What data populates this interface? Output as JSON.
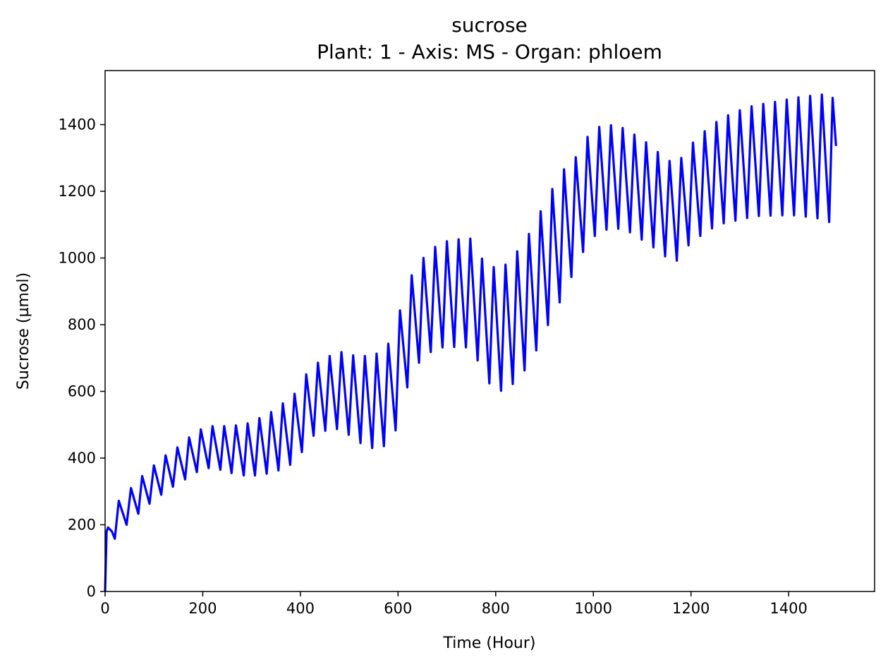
{
  "chart_data": {
    "type": "line",
    "title": "sucrose",
    "subtitle": "Plant: 1 - Axis: MS - Organ: phloem",
    "xlabel": "Time (Hour)",
    "ylabel": "Sucrose (µmol)",
    "xlim": [
      0,
      1576
    ],
    "ylim": [
      0,
      1562
    ],
    "x_ticks": [
      0,
      200,
      400,
      600,
      800,
      1000,
      1200,
      1400
    ],
    "y_ticks": [
      0,
      200,
      400,
      600,
      800,
      1000,
      1200,
      1400
    ],
    "grid": false,
    "line_color": "#0000ff",
    "series": [
      {
        "points": [
          [
            0,
            0
          ],
          [
            3,
            180
          ],
          [
            6,
            192
          ],
          [
            14,
            180
          ],
          [
            20,
            158
          ],
          [
            28,
            272
          ],
          [
            44,
            200
          ],
          [
            53,
            310
          ],
          [
            68,
            233
          ],
          [
            76,
            346
          ],
          [
            91,
            263
          ],
          [
            100,
            378
          ],
          [
            115,
            290
          ],
          [
            124,
            408
          ],
          [
            139,
            314
          ],
          [
            148,
            432
          ],
          [
            164,
            336
          ],
          [
            172,
            462
          ],
          [
            188,
            358
          ],
          [
            196,
            486
          ],
          [
            212,
            370
          ],
          [
            220,
            496
          ],
          [
            236,
            365
          ],
          [
            244,
            496
          ],
          [
            259,
            355
          ],
          [
            268,
            498
          ],
          [
            284,
            348
          ],
          [
            292,
            504
          ],
          [
            307,
            348
          ],
          [
            316,
            520
          ],
          [
            331,
            353
          ],
          [
            340,
            538
          ],
          [
            355,
            363
          ],
          [
            364,
            564
          ],
          [
            379,
            380
          ],
          [
            388,
            593
          ],
          [
            403,
            418
          ],
          [
            412,
            651
          ],
          [
            427,
            467
          ],
          [
            436,
            686
          ],
          [
            451,
            482
          ],
          [
            460,
            706
          ],
          [
            475,
            487
          ],
          [
            484,
            718
          ],
          [
            499,
            470
          ],
          [
            508,
            708
          ],
          [
            523,
            445
          ],
          [
            532,
            706
          ],
          [
            547,
            430
          ],
          [
            556,
            713
          ],
          [
            571,
            436
          ],
          [
            580,
            743
          ],
          [
            595,
            483
          ],
          [
            604,
            843
          ],
          [
            619,
            612
          ],
          [
            628,
            948
          ],
          [
            643,
            686
          ],
          [
            652,
            1000
          ],
          [
            667,
            718
          ],
          [
            676,
            1033
          ],
          [
            691,
            732
          ],
          [
            700,
            1050
          ],
          [
            715,
            733
          ],
          [
            724,
            1056
          ],
          [
            739,
            732
          ],
          [
            748,
            1058
          ],
          [
            763,
            693
          ],
          [
            772,
            998
          ],
          [
            787,
            624
          ],
          [
            796,
            973
          ],
          [
            811,
            602
          ],
          [
            820,
            980
          ],
          [
            835,
            622
          ],
          [
            844,
            1020
          ],
          [
            859,
            663
          ],
          [
            868,
            1072
          ],
          [
            883,
            723
          ],
          [
            892,
            1140
          ],
          [
            907,
            799
          ],
          [
            916,
            1207
          ],
          [
            931,
            867
          ],
          [
            940,
            1266
          ],
          [
            955,
            943
          ],
          [
            964,
            1302
          ],
          [
            979,
            1018
          ],
          [
            988,
            1363
          ],
          [
            1003,
            1066
          ],
          [
            1012,
            1393
          ],
          [
            1027,
            1085
          ],
          [
            1036,
            1398
          ],
          [
            1051,
            1088
          ],
          [
            1060,
            1390
          ],
          [
            1075,
            1077
          ],
          [
            1084,
            1370
          ],
          [
            1099,
            1055
          ],
          [
            1108,
            1347
          ],
          [
            1123,
            1032
          ],
          [
            1132,
            1318
          ],
          [
            1147,
            1005
          ],
          [
            1156,
            1291
          ],
          [
            1171,
            992
          ],
          [
            1180,
            1300
          ],
          [
            1195,
            1038
          ],
          [
            1204,
            1346
          ],
          [
            1219,
            1066
          ],
          [
            1228,
            1380
          ],
          [
            1243,
            1089
          ],
          [
            1252,
            1408
          ],
          [
            1267,
            1104
          ],
          [
            1276,
            1428
          ],
          [
            1291,
            1112
          ],
          [
            1300,
            1443
          ],
          [
            1315,
            1120
          ],
          [
            1324,
            1455
          ],
          [
            1339,
            1126
          ],
          [
            1348,
            1462
          ],
          [
            1363,
            1127
          ],
          [
            1372,
            1468
          ],
          [
            1387,
            1128
          ],
          [
            1396,
            1475
          ],
          [
            1411,
            1128
          ],
          [
            1420,
            1482
          ],
          [
            1435,
            1124
          ],
          [
            1444,
            1486
          ],
          [
            1459,
            1119
          ],
          [
            1468,
            1490
          ],
          [
            1483,
            1108
          ],
          [
            1490,
            1480
          ],
          [
            1497,
            1336
          ]
        ]
      }
    ]
  }
}
